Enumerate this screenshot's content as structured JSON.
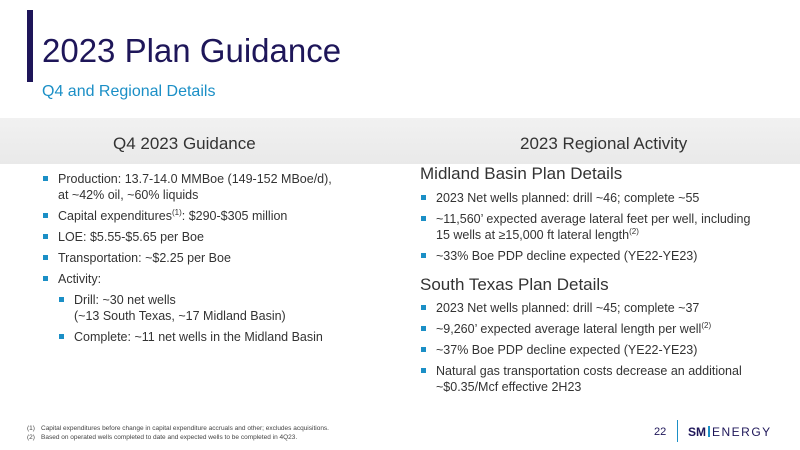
{
  "title": "2023 Plan Guidance",
  "subtitle": "Q4 and Regional Details",
  "left": {
    "heading": "Q4 2023 Guidance",
    "bullets": [
      {
        "line1": "Production: 13.7-14.0 MMBoe (149-152 MBoe/d),",
        "line2": "at ~42% oil, ~60% liquids"
      },
      {
        "text": "Capital expenditures",
        "sup": "(1)",
        "after": ": $290-$305 million"
      },
      {
        "text": "LOE: $5.55-$5.65 per Boe"
      },
      {
        "text": "Transportation: ~$2.25 per Boe"
      },
      {
        "text": "Activity:"
      }
    ],
    "sub_bullets": [
      {
        "line1": "Drill: ~30 net wells",
        "line2": "(~13 South Texas, ~17 Midland Basin)"
      },
      {
        "text": "Complete: ~11 net wells in the Midland Basin"
      }
    ]
  },
  "right": {
    "heading": "2023 Regional Activity",
    "midland": {
      "title": "Midland Basin Plan Details",
      "bullets": [
        {
          "text": "2023 Net wells planned: drill ~46; complete ~55"
        },
        {
          "line1": "~11,560’ expected average lateral feet per well, including",
          "line2": "15 wells at ≥15,000 ft lateral length",
          "sup": "(2)"
        },
        {
          "text": "~33% Boe PDP decline expected (YE22-YE23)"
        }
      ]
    },
    "south_texas": {
      "title": "South Texas Plan Details",
      "bullets": [
        {
          "text": "2023 Net wells planned: drill ~45; complete ~37"
        },
        {
          "text": "~9,260’ expected average lateral length per well",
          "sup": "(2)"
        },
        {
          "text": "~37% Boe PDP decline expected (YE22-YE23)"
        },
        {
          "line1": "Natural gas transportation costs decrease an additional",
          "line2": "~$0.35/Mcf effective 2H23"
        }
      ]
    }
  },
  "footnotes": [
    {
      "num": "(1)",
      "text": "Capital expenditures before change in capital expenditure accruals and other; excludes acquisitions."
    },
    {
      "num": "(2)",
      "text": "Based on operated wells completed to date and expected wells to be completed in 4Q23."
    }
  ],
  "page_number": "22",
  "logo": {
    "sm": "SM",
    "energy": "ENERGY"
  },
  "colors": {
    "navy": "#1e1659",
    "accent_blue": "#1b8fc6"
  }
}
